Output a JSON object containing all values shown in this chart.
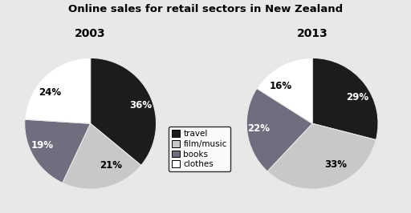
{
  "title": "Online sales for retail sectors in New Zealand",
  "pie2003": {
    "year": "2003",
    "values": [
      36,
      21,
      19,
      24
    ],
    "labels": [
      "36%",
      "21%",
      "19%",
      "24%"
    ],
    "colors": [
      "#1c1c1c",
      "#c8c8c8",
      "#6e6e7e",
      "#ffffff"
    ],
    "startangle": 90,
    "label_colors": [
      "white",
      "black",
      "white",
      "black"
    ]
  },
  "pie2013": {
    "year": "2013",
    "values": [
      29,
      33,
      22,
      16
    ],
    "labels": [
      "29%",
      "33%",
      "22%",
      "16%"
    ],
    "colors": [
      "#1c1c1c",
      "#c8c8c8",
      "#6e6e7e",
      "#ffffff"
    ],
    "startangle": 90,
    "label_colors": [
      "white",
      "black",
      "white",
      "black"
    ]
  },
  "legend_labels": [
    "travel",
    "film/music",
    "books",
    "clothes"
  ],
  "legend_colors": [
    "#1c1c1c",
    "#c8c8c8",
    "#6e6e7e",
    "#ffffff"
  ],
  "bg_color": "#e8e8e8",
  "title_fontsize": 9.5,
  "year_fontsize": 10,
  "pct_fontsize": 8.5
}
